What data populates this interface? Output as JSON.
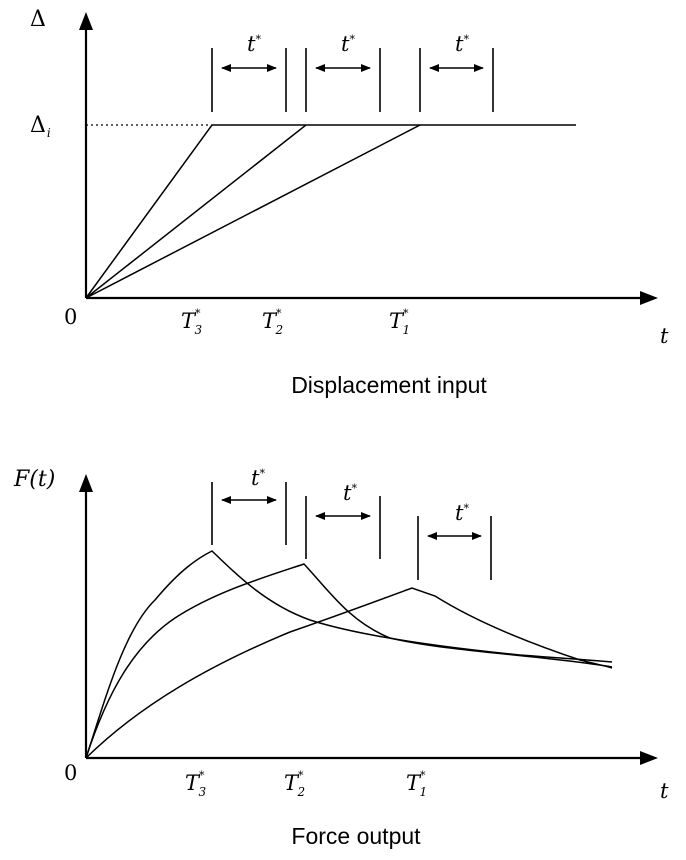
{
  "top_panel": {
    "y_symbol": "Δ",
    "level_symbol": "Δ",
    "level_subscript": "i",
    "origin": "0",
    "x_symbol": "t",
    "caption": "Displacement input"
  },
  "bottom_panel": {
    "y_label": "F(t)",
    "origin": "0",
    "x_symbol": "t",
    "caption": "Force output"
  },
  "interval_label": {
    "base": "t",
    "sup": "*"
  },
  "ticks": [
    {
      "base": "T",
      "sup": "*",
      "sub": "3"
    },
    {
      "base": "T",
      "sup": "*",
      "sub": "2"
    },
    {
      "base": "T",
      "sup": "*",
      "sub": "1"
    }
  ]
}
